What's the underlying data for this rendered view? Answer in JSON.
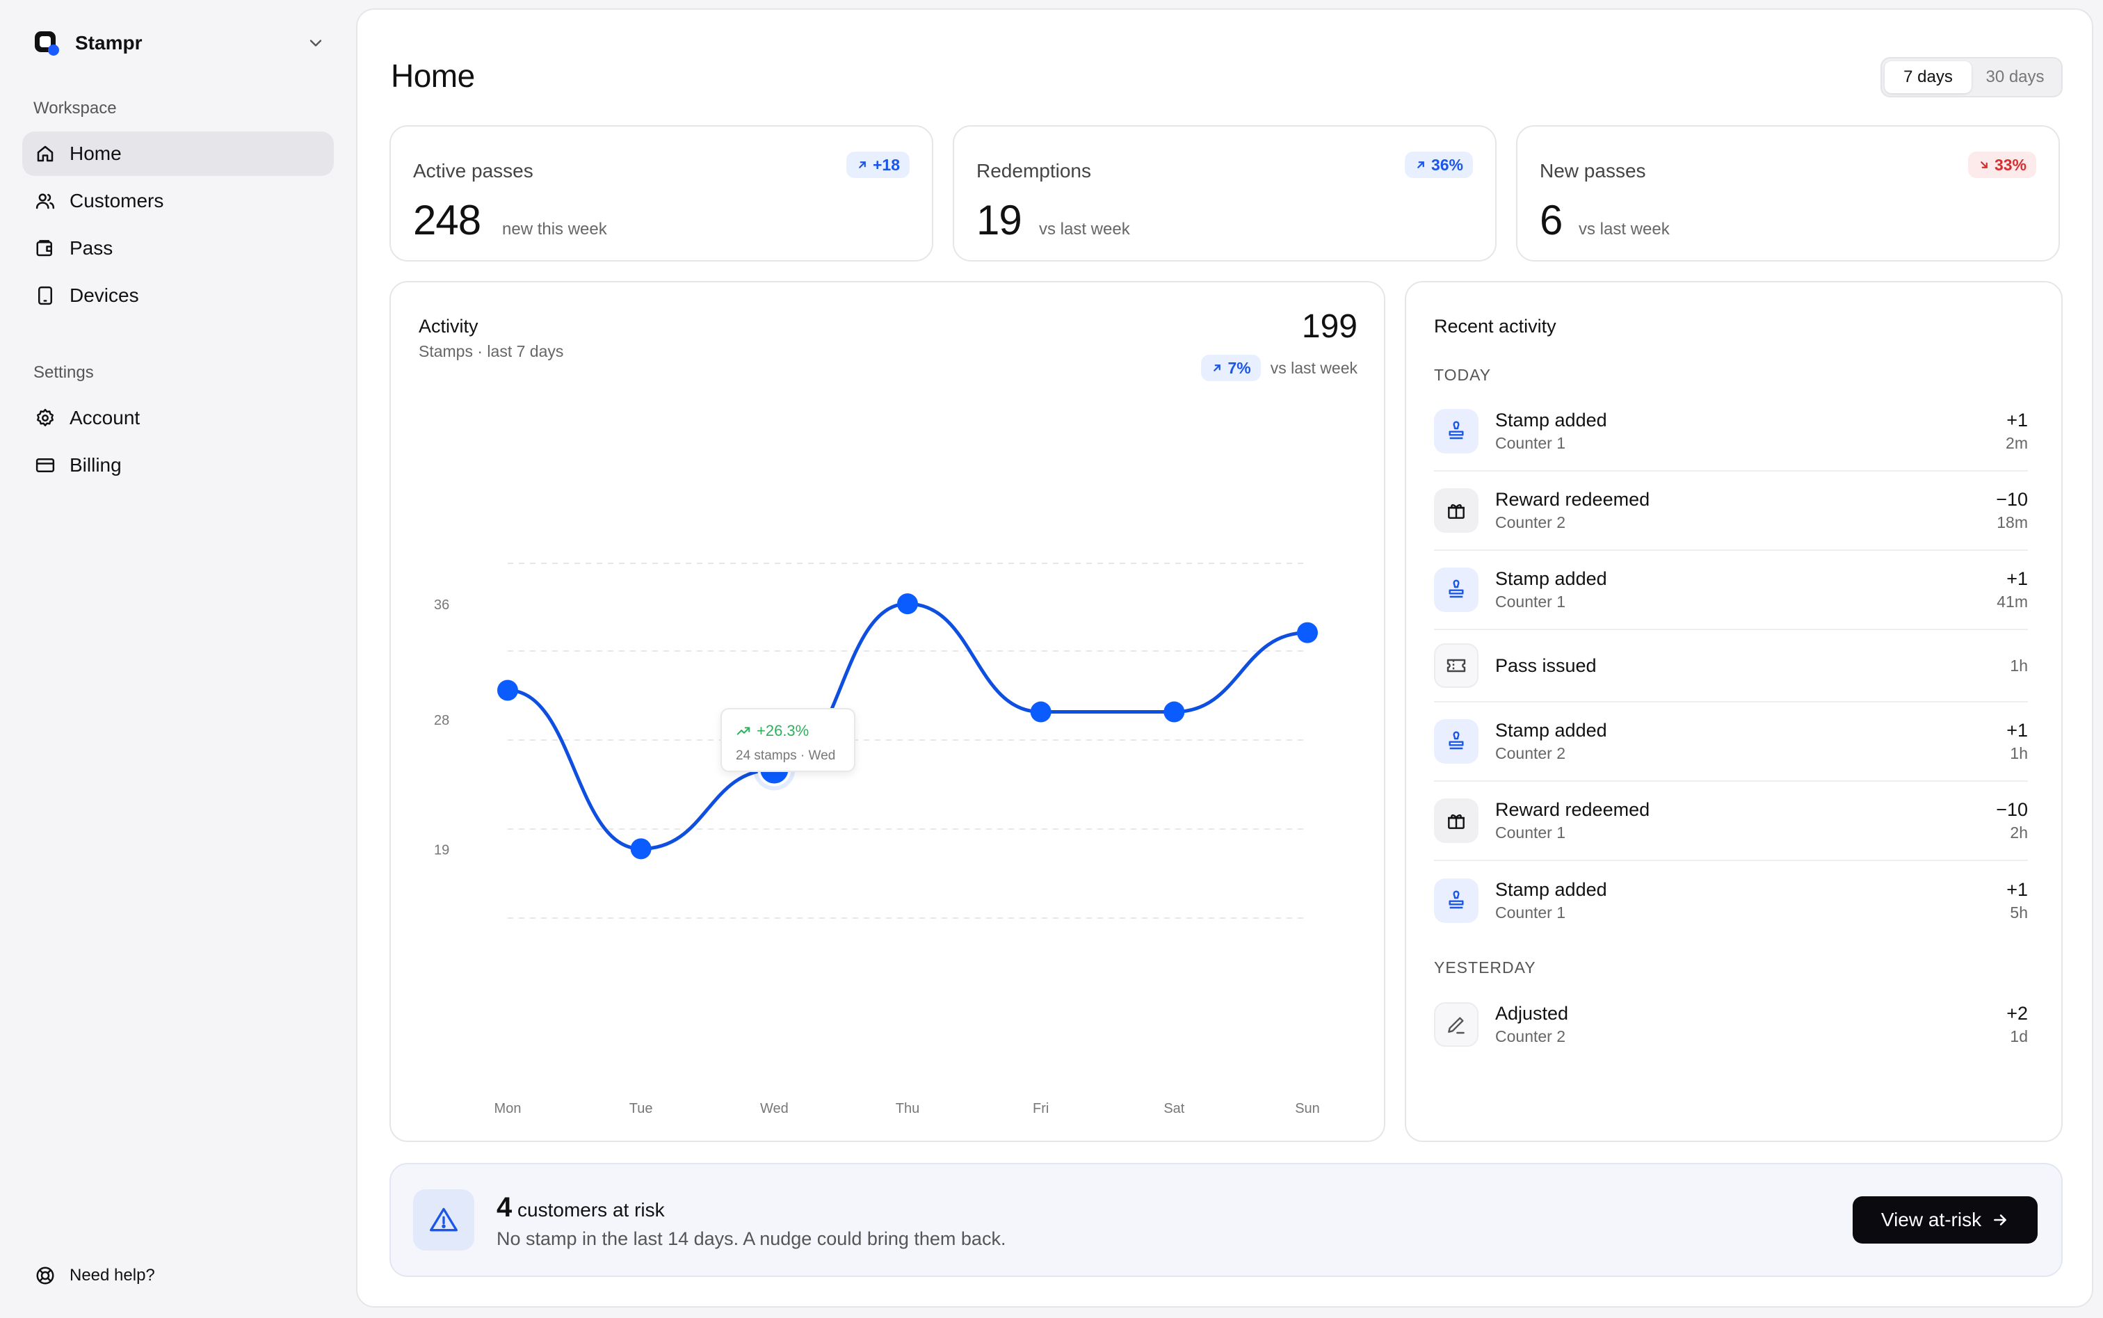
{
  "app": {
    "name": "Stampr"
  },
  "sidebar": {
    "workspace_label": "Workspace",
    "workspace_items": [
      {
        "label": "Home",
        "icon": "home-icon",
        "active": true
      },
      {
        "label": "Customers",
        "icon": "users-icon"
      },
      {
        "label": "Pass",
        "icon": "wallet-icon"
      },
      {
        "label": "Devices",
        "icon": "tablet-icon"
      }
    ],
    "settings_label": "Settings",
    "settings_items": [
      {
        "label": "Account",
        "icon": "gear-icon"
      },
      {
        "label": "Billing",
        "icon": "credit-card-icon"
      }
    ],
    "help_label": "Need help?"
  },
  "header": {
    "title": "Home",
    "range_options": [
      "7 days",
      "30 days"
    ],
    "range_selected": "7 days"
  },
  "stats": [
    {
      "label": "Active passes",
      "value": "248",
      "sub": "new this week",
      "badge": "+18",
      "trend": "up"
    },
    {
      "label": "Redemptions",
      "value": "19",
      "sub": "vs last week",
      "badge": "36%",
      "trend": "up"
    },
    {
      "label": "New passes",
      "value": "6",
      "sub": "vs last week",
      "badge": "33%",
      "trend": "down"
    }
  ],
  "activity_chart": {
    "title": "Activity",
    "subtitle": "Stamps · last 7 days",
    "total": "199",
    "delta": "7%",
    "delta_text": "vs last week",
    "tooltip": {
      "delta": "+26.3%",
      "sub": "24 stamps · Wed"
    }
  },
  "chart_data": {
    "type": "line",
    "categories": [
      "Mon",
      "Tue",
      "Wed",
      "Thu",
      "Fri",
      "Sat",
      "Sun"
    ],
    "series": [
      {
        "values": [
          30,
          19,
          24.5,
          36,
          28.5,
          28.5,
          34
        ]
      }
    ],
    "yticks": [
      19,
      28,
      36
    ],
    "ylim": [
      14,
      39
    ],
    "grid": true,
    "highlight": "Wed",
    "colors": {
      "line": "#0f4fe0",
      "point": "#0a5cff"
    }
  },
  "recent": {
    "title": "Recent activity",
    "groups": [
      {
        "label": "TODAY",
        "items": [
          {
            "title": "Stamp added",
            "sub": "Counter 1",
            "amount": "+1",
            "time": "2m",
            "icon": "stamp-icon"
          },
          {
            "title": "Reward redeemed",
            "sub": "Counter 2",
            "amount": "−10",
            "time": "18m",
            "icon": "gift-icon"
          },
          {
            "title": "Stamp added",
            "sub": "Counter 1",
            "amount": "+1",
            "time": "41m",
            "icon": "stamp-icon"
          },
          {
            "title": "Pass issued",
            "sub": "",
            "amount": "",
            "time": "1h",
            "icon": "ticket-icon"
          },
          {
            "title": "Stamp added",
            "sub": "Counter 2",
            "amount": "+1",
            "time": "1h",
            "icon": "stamp-icon"
          },
          {
            "title": "Reward redeemed",
            "sub": "Counter 1",
            "amount": "−10",
            "time": "2h",
            "icon": "gift-icon"
          },
          {
            "title": "Stamp added",
            "sub": "Counter 1",
            "amount": "+1",
            "time": "5h",
            "icon": "stamp-icon"
          }
        ]
      },
      {
        "label": "YESTERDAY",
        "items": [
          {
            "title": "Adjusted",
            "sub": "Counter 2",
            "amount": "+2",
            "time": "1d",
            "icon": "pencil-icon"
          }
        ]
      }
    ]
  },
  "risk": {
    "count": "4",
    "title": "customers at risk",
    "sub": "No stamp in the last 14 days. A nudge could bring them back.",
    "button": "View at-risk"
  }
}
